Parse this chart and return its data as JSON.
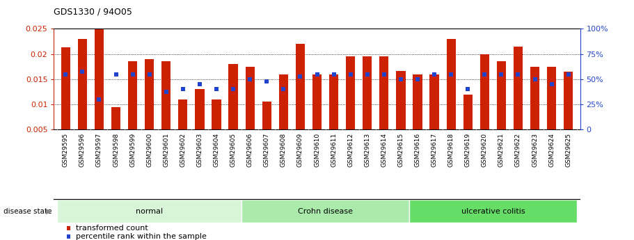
{
  "title": "GDS1330 / 94O05",
  "samples": [
    "GSM29595",
    "GSM29596",
    "GSM29597",
    "GSM29598",
    "GSM29599",
    "GSM29600",
    "GSM29601",
    "GSM29602",
    "GSM29603",
    "GSM29604",
    "GSM29605",
    "GSM29606",
    "GSM29607",
    "GSM29608",
    "GSM29609",
    "GSM29610",
    "GSM29611",
    "GSM29612",
    "GSM29613",
    "GSM29614",
    "GSM29615",
    "GSM29616",
    "GSM29617",
    "GSM29618",
    "GSM29619",
    "GSM29620",
    "GSM29621",
    "GSM29622",
    "GSM29623",
    "GSM29624",
    "GSM29625"
  ],
  "red_values": [
    0.0213,
    0.023,
    0.025,
    0.0095,
    0.0185,
    0.019,
    0.0185,
    0.011,
    0.013,
    0.011,
    0.018,
    0.0175,
    0.0105,
    0.016,
    0.022,
    0.016,
    0.016,
    0.0195,
    0.0195,
    0.0195,
    0.0167,
    0.016,
    0.016,
    0.023,
    0.012,
    0.02,
    0.0185,
    0.0215,
    0.0175,
    0.0175,
    0.0165
  ],
  "blue_values": [
    0.016,
    0.0165,
    0.011,
    0.016,
    0.016,
    0.016,
    0.0125,
    0.013,
    0.014,
    0.013,
    0.013,
    0.015,
    0.0145,
    0.013,
    0.0155,
    0.016,
    0.016,
    0.016,
    0.016,
    0.016,
    0.015,
    0.015,
    0.016,
    0.016,
    0.013,
    0.016,
    0.016,
    0.016,
    0.015,
    0.014,
    0.016
  ],
  "groups": [
    {
      "label": "normal",
      "start": 0,
      "end": 10,
      "color": "#d8f5d8"
    },
    {
      "label": "Crohn disease",
      "start": 11,
      "end": 20,
      "color": "#aaeaaa"
    },
    {
      "label": "ulcerative colitis",
      "start": 21,
      "end": 30,
      "color": "#66dd66"
    }
  ],
  "ylim_left": [
    0.005,
    0.025
  ],
  "ylim_right": [
    0,
    100
  ],
  "yticks_left": [
    0.005,
    0.01,
    0.015,
    0.02,
    0.025
  ],
  "ytick_labels_left": [
    "0.005",
    "0.01",
    "0.015",
    "0.02",
    "0.025"
  ],
  "yticks_right": [
    0,
    25,
    50,
    75,
    100
  ],
  "ytick_labels_right": [
    "0",
    "25%",
    "50%",
    "75%",
    "100%"
  ],
  "bar_color": "#cc2200",
  "dot_color": "#2244cc",
  "label_color_left": "#cc2200",
  "label_color_right": "#2244cc",
  "legend_red": "transformed count",
  "legend_blue": "percentile rank within the sample",
  "disease_state_label": "disease state",
  "bar_width": 0.55,
  "dot_size": 4.5,
  "xticklabel_bg": "#d0d0d0"
}
